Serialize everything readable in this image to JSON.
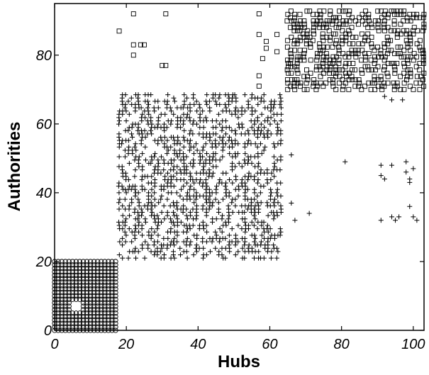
{
  "chart_data": {
    "type": "scatter",
    "title": "",
    "xlabel": "Hubs",
    "ylabel": "Authorities",
    "xlim": [
      0,
      103
    ],
    "ylim": [
      0,
      95
    ],
    "xticks": [
      0,
      20,
      40,
      60,
      80,
      100
    ],
    "yticks": [
      0,
      20,
      40,
      60,
      80
    ],
    "xtick_labels": [
      "0",
      "20",
      "40",
      "60",
      "80",
      "100"
    ],
    "ytick_labels": [
      "0",
      "20",
      "40",
      "60",
      "80"
    ],
    "grid": false,
    "legend": "none",
    "series": [
      {
        "marker": "circle",
        "description_block": {
          "x_range": [
            0,
            17
          ],
          "y_range": [
            0,
            20
          ],
          "density": "full"
        },
        "points": [
          [
            0,
            0
          ]
        ]
      },
      {
        "marker": "plus",
        "description_block": {
          "x_range": [
            18,
            63
          ],
          "y_range": [
            21,
            69
          ],
          "density": "dense"
        },
        "outliers": [
          [
            66,
            51
          ],
          [
            66,
            37
          ],
          [
            67,
            32
          ],
          [
            71,
            34
          ],
          [
            81,
            49
          ],
          [
            91,
            48
          ],
          [
            91,
            45
          ],
          [
            92,
            44
          ],
          [
            94,
            48
          ],
          [
            94,
            33
          ],
          [
            95,
            32
          ],
          [
            96,
            33
          ],
          [
            98,
            49
          ],
          [
            98,
            46
          ],
          [
            99,
            44
          ],
          [
            99,
            43
          ],
          [
            100,
            47
          ],
          [
            99,
            36
          ],
          [
            100,
            33
          ],
          [
            101,
            32
          ],
          [
            91,
            32
          ],
          [
            92,
            68
          ],
          [
            94,
            67
          ],
          [
            97,
            67
          ]
        ]
      },
      {
        "marker": "square",
        "description_block": {
          "x_range": [
            65,
            103
          ],
          "y_range": [
            70,
            93
          ],
          "density": "dense"
        },
        "outliers": [
          [
            18,
            87
          ],
          [
            22,
            92
          ],
          [
            22,
            83
          ],
          [
            22,
            80
          ],
          [
            24,
            83
          ],
          [
            25,
            83
          ],
          [
            30,
            77
          ],
          [
            31,
            92
          ],
          [
            31,
            77
          ],
          [
            57,
            92
          ],
          [
            57,
            86
          ],
          [
            57,
            74
          ],
          [
            57,
            71
          ],
          [
            58,
            79
          ],
          [
            59,
            82
          ],
          [
            59,
            84
          ],
          [
            62,
            81
          ],
          [
            62,
            86
          ]
        ]
      }
    ],
    "colors": {
      "marker": "#000000",
      "background": "#ffffff"
    }
  }
}
